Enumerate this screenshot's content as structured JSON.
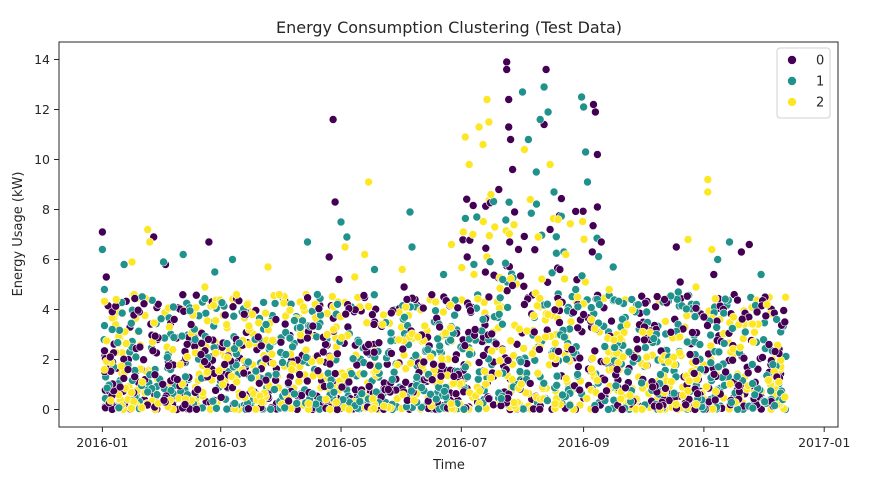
{
  "chart_data": {
    "type": "scatter",
    "title": "Energy Consumption Clustering (Test Data)",
    "xlabel": "Time",
    "ylabel": "Energy Usage (kW)",
    "xlim": [
      "2015-12-10",
      "2017-01-08"
    ],
    "ylim": [
      -0.7,
      14.7
    ],
    "x_ticks": [
      {
        "date": "2016-01-01",
        "label": "2016-01"
      },
      {
        "date": "2016-03-01",
        "label": "2016-03"
      },
      {
        "date": "2016-05-01",
        "label": "2016-05"
      },
      {
        "date": "2016-07-01",
        "label": "2016-07"
      },
      {
        "date": "2016-09-01",
        "label": "2016-09"
      },
      {
        "date": "2016-11-01",
        "label": "2016-11"
      },
      {
        "date": "2017-01-01",
        "label": "2017-01"
      }
    ],
    "y_ticks": [
      0,
      2,
      4,
      6,
      8,
      10,
      12,
      14
    ],
    "grid": false,
    "legend": {
      "placement": "top-right",
      "entries": [
        "0",
        "1",
        "2"
      ]
    },
    "colors": {
      "0": "#440154",
      "1": "#21918c",
      "2": "#fde725"
    },
    "series": [
      {
        "name": "0",
        "points": [
          [
            "2016-01-01",
            7.1
          ],
          [
            "2016-01-03",
            5.3
          ],
          [
            "2016-01-05",
            2.1
          ],
          [
            "2016-01-10",
            0.9
          ],
          [
            "2016-01-14",
            1.6
          ],
          [
            "2016-01-20",
            2.5
          ],
          [
            "2016-01-27",
            6.9
          ],
          [
            "2016-02-02",
            5.8
          ],
          [
            "2016-02-08",
            1.2
          ],
          [
            "2016-02-15",
            3.4
          ],
          [
            "2016-02-20",
            2.2
          ],
          [
            "2016-02-24",
            6.7
          ],
          [
            "2016-03-03",
            1.8
          ],
          [
            "2016-03-12",
            0.6
          ],
          [
            "2016-03-20",
            2.9
          ],
          [
            "2016-03-29",
            3.6
          ],
          [
            "2016-04-10",
            1.4
          ],
          [
            "2016-04-22",
            2.3
          ],
          [
            "2016-04-25",
            6.1
          ],
          [
            "2016-04-27",
            11.6
          ],
          [
            "2016-04-28",
            8.3
          ],
          [
            "2016-04-30",
            5.2
          ],
          [
            "2016-05-05",
            1.1
          ],
          [
            "2016-05-15",
            2.6
          ],
          [
            "2016-05-25",
            0.8
          ],
          [
            "2016-06-02",
            4.9
          ],
          [
            "2016-06-12",
            1.9
          ],
          [
            "2016-06-20",
            3.3
          ],
          [
            "2016-06-28",
            2.0
          ],
          [
            "2016-07-04",
            6.1
          ],
          [
            "2016-07-08",
            3.2
          ],
          [
            "2016-07-15",
            4.5
          ],
          [
            "2016-07-20",
            8.8
          ],
          [
            "2016-07-24",
            13.9
          ],
          [
            "2016-07-24",
            13.6
          ],
          [
            "2016-07-25",
            12.4
          ],
          [
            "2016-07-25",
            11.3
          ],
          [
            "2016-07-26",
            10.8
          ],
          [
            "2016-07-27",
            9.6
          ],
          [
            "2016-07-28",
            7.9
          ],
          [
            "2016-07-30",
            6.4
          ],
          [
            "2016-08-02",
            4.2
          ],
          [
            "2016-08-07",
            3.1
          ],
          [
            "2016-08-12",
            11.4
          ],
          [
            "2016-08-13",
            13.6
          ],
          [
            "2016-08-15",
            7.2
          ],
          [
            "2016-08-20",
            5.6
          ],
          [
            "2016-08-26",
            2.4
          ],
          [
            "2016-09-01",
            3.8
          ],
          [
            "2016-09-06",
            12.2
          ],
          [
            "2016-09-07",
            11.9
          ],
          [
            "2016-09-08",
            10.2
          ],
          [
            "2016-09-08",
            8.1
          ],
          [
            "2016-09-10",
            6.7
          ],
          [
            "2016-09-18",
            1.6
          ],
          [
            "2016-09-28",
            2.8
          ],
          [
            "2016-10-06",
            0.9
          ],
          [
            "2016-10-12",
            4.4
          ],
          [
            "2016-10-18",
            6.5
          ],
          [
            "2016-10-20",
            5.1
          ],
          [
            "2016-10-25",
            2.2
          ],
          [
            "2016-11-01",
            3.7
          ],
          [
            "2016-11-06",
            5.4
          ],
          [
            "2016-11-12",
            1.5
          ],
          [
            "2016-11-20",
            6.3
          ],
          [
            "2016-11-24",
            6.6
          ],
          [
            "2016-11-28",
            3.9
          ],
          [
            "2016-12-04",
            2.6
          ],
          [
            "2016-12-08",
            1.3
          ],
          [
            "2016-12-12",
            3.5
          ]
        ]
      },
      {
        "name": "1",
        "points": [
          [
            "2016-01-01",
            6.4
          ],
          [
            "2016-01-02",
            4.8
          ],
          [
            "2016-01-06",
            3.2
          ],
          [
            "2016-01-12",
            5.8
          ],
          [
            "2016-01-18",
            2.1
          ],
          [
            "2016-01-24",
            0.7
          ],
          [
            "2016-02-01",
            5.9
          ],
          [
            "2016-02-06",
            4.1
          ],
          [
            "2016-02-11",
            6.2
          ],
          [
            "2016-02-17",
            2.8
          ],
          [
            "2016-02-27",
            5.5
          ],
          [
            "2016-03-07",
            6.0
          ],
          [
            "2016-03-15",
            1.9
          ],
          [
            "2016-03-24",
            3.4
          ],
          [
            "2016-04-03",
            2.2
          ],
          [
            "2016-04-14",
            6.7
          ],
          [
            "2016-04-19",
            4.6
          ],
          [
            "2016-05-01",
            7.5
          ],
          [
            "2016-05-04",
            6.9
          ],
          [
            "2016-05-10",
            2.7
          ],
          [
            "2016-05-18",
            5.6
          ],
          [
            "2016-05-27",
            1.2
          ],
          [
            "2016-06-05",
            7.9
          ],
          [
            "2016-06-06",
            6.5
          ],
          [
            "2016-06-14",
            2.4
          ],
          [
            "2016-06-22",
            5.4
          ],
          [
            "2016-07-03",
            1.7
          ],
          [
            "2016-07-12",
            3.6
          ],
          [
            "2016-07-22",
            5.2
          ],
          [
            "2016-08-01",
            12.7
          ],
          [
            "2016-08-04",
            10.8
          ],
          [
            "2016-08-08",
            9.5
          ],
          [
            "2016-08-10",
            11.6
          ],
          [
            "2016-08-12",
            12.9
          ],
          [
            "2016-08-14",
            11.9
          ],
          [
            "2016-08-17",
            8.7
          ],
          [
            "2016-08-22",
            6.3
          ],
          [
            "2016-08-28",
            4.8
          ],
          [
            "2016-08-31",
            12.5
          ],
          [
            "2016-09-01",
            12.1
          ],
          [
            "2016-09-02",
            10.3
          ],
          [
            "2016-09-03",
            9.1
          ],
          [
            "2016-09-09",
            4.2
          ],
          [
            "2016-09-16",
            5.7
          ],
          [
            "2016-09-24",
            2.3
          ],
          [
            "2016-10-03",
            3.9
          ],
          [
            "2016-10-10",
            1.4
          ],
          [
            "2016-10-19",
            4.7
          ],
          [
            "2016-10-30",
            2.6
          ],
          [
            "2016-11-08",
            6.0
          ],
          [
            "2016-11-14",
            6.7
          ],
          [
            "2016-11-22",
            3.1
          ],
          [
            "2016-11-30",
            5.4
          ],
          [
            "2016-12-06",
            1.8
          ],
          [
            "2016-12-11",
            0.4
          ]
        ]
      },
      {
        "name": "2",
        "points": [
          [
            "2016-01-02",
            1.6
          ],
          [
            "2016-01-08",
            4.4
          ],
          [
            "2016-01-16",
            5.9
          ],
          [
            "2016-01-24",
            7.2
          ],
          [
            "2016-01-25",
            6.7
          ],
          [
            "2016-02-04",
            3.3
          ],
          [
            "2016-02-13",
            2.1
          ],
          [
            "2016-02-22",
            4.9
          ],
          [
            "2016-03-02",
            1.0
          ],
          [
            "2016-03-09",
            4.6
          ],
          [
            "2016-03-17",
            3.8
          ],
          [
            "2016-03-25",
            5.7
          ],
          [
            "2016-04-06",
            1.6
          ],
          [
            "2016-04-12",
            4.1
          ],
          [
            "2016-04-24",
            3.0
          ],
          [
            "2016-05-03",
            6.5
          ],
          [
            "2016-05-08",
            5.3
          ],
          [
            "2016-05-13",
            6.2
          ],
          [
            "2016-05-15",
            9.1
          ],
          [
            "2016-05-22",
            3.4
          ],
          [
            "2016-06-01",
            5.6
          ],
          [
            "2016-06-09",
            2.9
          ],
          [
            "2016-06-18",
            4.3
          ],
          [
            "2016-06-26",
            6.6
          ],
          [
            "2016-07-02",
            7.1
          ],
          [
            "2016-07-03",
            10.9
          ],
          [
            "2016-07-05",
            9.8
          ],
          [
            "2016-07-10",
            11.3
          ],
          [
            "2016-07-12",
            10.6
          ],
          [
            "2016-07-14",
            12.4
          ],
          [
            "2016-07-15",
            11.5
          ],
          [
            "2016-07-16",
            8.6
          ],
          [
            "2016-07-18",
            7.3
          ],
          [
            "2016-08-02",
            10.4
          ],
          [
            "2016-08-05",
            8.4
          ],
          [
            "2016-08-09",
            6.9
          ],
          [
            "2016-08-15",
            9.8
          ],
          [
            "2016-08-19",
            7.6
          ],
          [
            "2016-08-23",
            6.2
          ],
          [
            "2016-08-29",
            4.5
          ],
          [
            "2016-09-05",
            3.6
          ],
          [
            "2016-09-14",
            4.8
          ],
          [
            "2016-09-21",
            2.1
          ],
          [
            "2016-10-01",
            3.1
          ],
          [
            "2016-10-14",
            1.9
          ],
          [
            "2016-10-24",
            6.8
          ],
          [
            "2016-10-28",
            4.9
          ],
          [
            "2016-11-03",
            9.2
          ],
          [
            "2016-11-03",
            8.7
          ],
          [
            "2016-11-05",
            6.4
          ],
          [
            "2016-11-16",
            3.7
          ],
          [
            "2016-11-26",
            2.7
          ],
          [
            "2016-12-03",
            4.2
          ],
          [
            "2016-12-09",
            1.1
          ],
          [
            "2016-12-12",
            0.5
          ]
        ]
      }
    ]
  }
}
